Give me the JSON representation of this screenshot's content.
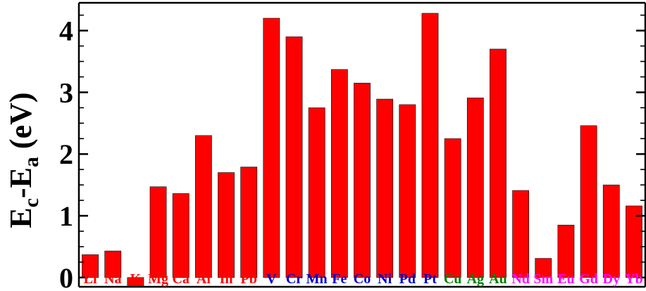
{
  "chart_data": {
    "type": "bar",
    "title": "",
    "xlabel": "",
    "ylabel": {
      "base": "E",
      "sub1": "c",
      "dash": "-",
      "base2": "E",
      "sub2": "a",
      "unit": " (eV)"
    },
    "ylim": [
      -0.15,
      4.45
    ],
    "y_major_ticks": [
      0,
      1,
      2,
      3,
      4
    ],
    "y_minor_step": 0.25,
    "grid": false,
    "legend": "none",
    "categories": [
      "Li",
      "Na",
      "K",
      "Mg",
      "Ca",
      "Al",
      "In",
      "Pb",
      "V",
      "Cr",
      "Mn",
      "Fe",
      "Co",
      "Ni",
      "Pd",
      "Pt",
      "Cu",
      "Ag",
      "Au",
      "Nd",
      "Sm",
      "Eu",
      "Gd",
      "Dy",
      "Yb"
    ],
    "values": [
      0.37,
      0.43,
      -0.13,
      1.47,
      1.36,
      2.3,
      1.7,
      1.79,
      4.2,
      3.9,
      2.75,
      3.37,
      3.15,
      2.89,
      2.8,
      4.28,
      2.25,
      2.91,
      3.7,
      1.41,
      0.31,
      0.85,
      2.46,
      1.5,
      1.16
    ],
    "category_groups": [
      "red",
      "red",
      "red",
      "red",
      "red",
      "red",
      "red",
      "red",
      "blue",
      "blue",
      "blue",
      "blue",
      "blue",
      "blue",
      "blue",
      "blue",
      "green",
      "green",
      "green",
      "magenta",
      "magenta",
      "magenta",
      "magenta",
      "magenta",
      "magenta"
    ],
    "colors": {
      "bar": "#ff0000",
      "red": "#ff0000",
      "blue": "#0000cc",
      "green": "#008000",
      "magenta": "#ff00ff",
      "axis": "#000000"
    }
  }
}
